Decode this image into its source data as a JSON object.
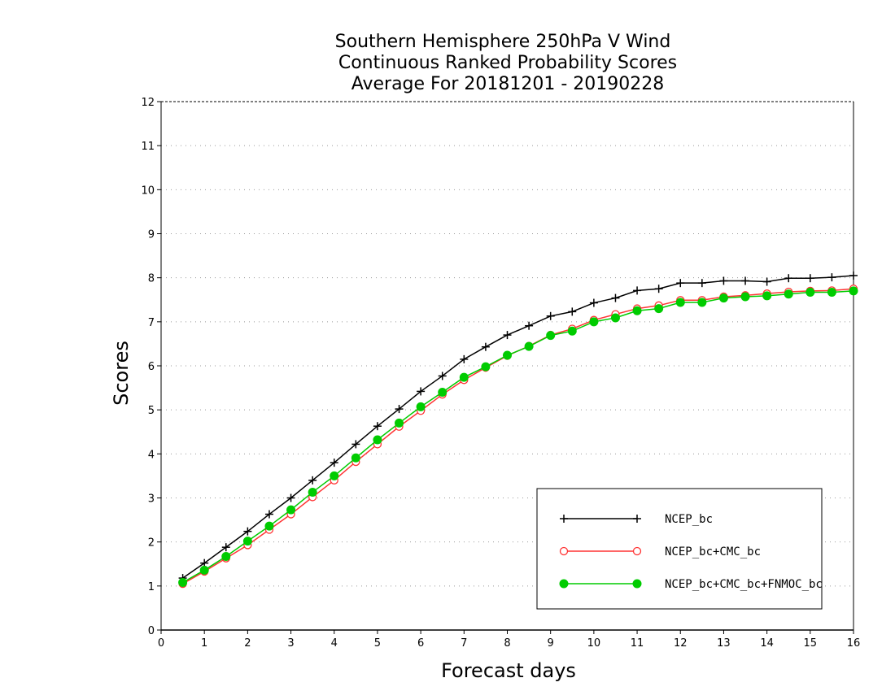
{
  "chart_data": {
    "type": "line",
    "title": [
      "Southern Hemisphere 250hPa V Wind",
      "Continuous Ranked Probability Scores",
      "Average For 20181201 - 20190228"
    ],
    "xlabel": "Forecast days",
    "ylabel": "Scores",
    "xlim": [
      0,
      16
    ],
    "ylim": [
      0,
      12
    ],
    "xticks": [
      "0",
      "1",
      "2",
      "3",
      "4",
      "5",
      "6",
      "7",
      "8",
      "9",
      "10",
      "11",
      "12",
      "13",
      "14",
      "15",
      "16"
    ],
    "yticks": [
      "0",
      "1",
      "2",
      "3",
      "4",
      "5",
      "6",
      "7",
      "8",
      "9",
      "10",
      "11",
      "12"
    ],
    "grid": true,
    "legend_position": "bottom-right",
    "x": [
      0.5,
      1,
      1.5,
      2,
      2.5,
      3,
      3.5,
      4,
      4.5,
      5,
      5.5,
      6,
      6.5,
      7,
      7.5,
      8,
      8.5,
      9,
      9.5,
      10,
      10.5,
      11,
      11.5,
      12,
      12.5,
      13,
      13.5,
      14,
      14.5,
      15,
      15.5,
      16
    ],
    "series": [
      {
        "name": "NCEP_bc",
        "color": "#000000",
        "marker": "plus",
        "values": [
          1.18,
          1.52,
          1.88,
          2.24,
          2.63,
          3.0,
          3.4,
          3.8,
          4.22,
          4.63,
          5.02,
          5.42,
          5.77,
          6.15,
          6.43,
          6.7,
          6.91,
          7.13,
          7.23,
          7.43,
          7.54,
          7.71,
          7.75,
          7.88,
          7.88,
          7.93,
          7.93,
          7.91,
          7.99,
          7.99,
          8.01,
          8.05
        ]
      },
      {
        "name": "NCEP_bc+CMC_bc",
        "color": "#ff3333",
        "marker": "circle-open",
        "values": [
          1.05,
          1.33,
          1.63,
          1.93,
          2.28,
          2.63,
          3.02,
          3.4,
          3.82,
          4.22,
          4.62,
          4.98,
          5.35,
          5.68,
          5.96,
          6.23,
          6.45,
          6.7,
          6.84,
          7.04,
          7.17,
          7.3,
          7.37,
          7.49,
          7.49,
          7.57,
          7.6,
          7.64,
          7.68,
          7.7,
          7.71,
          7.75
        ]
      },
      {
        "name": "NCEP_bc+CMC_bc+FNMOC_bc",
        "color": "#00cc00",
        "marker": "circle-filled",
        "values": [
          1.08,
          1.36,
          1.67,
          2.02,
          2.36,
          2.73,
          3.13,
          3.5,
          3.91,
          4.32,
          4.7,
          5.07,
          5.4,
          5.74,
          5.98,
          6.24,
          6.44,
          6.69,
          6.79,
          7.0,
          7.09,
          7.25,
          7.3,
          7.44,
          7.44,
          7.54,
          7.57,
          7.59,
          7.63,
          7.67,
          7.67,
          7.7
        ]
      }
    ]
  }
}
